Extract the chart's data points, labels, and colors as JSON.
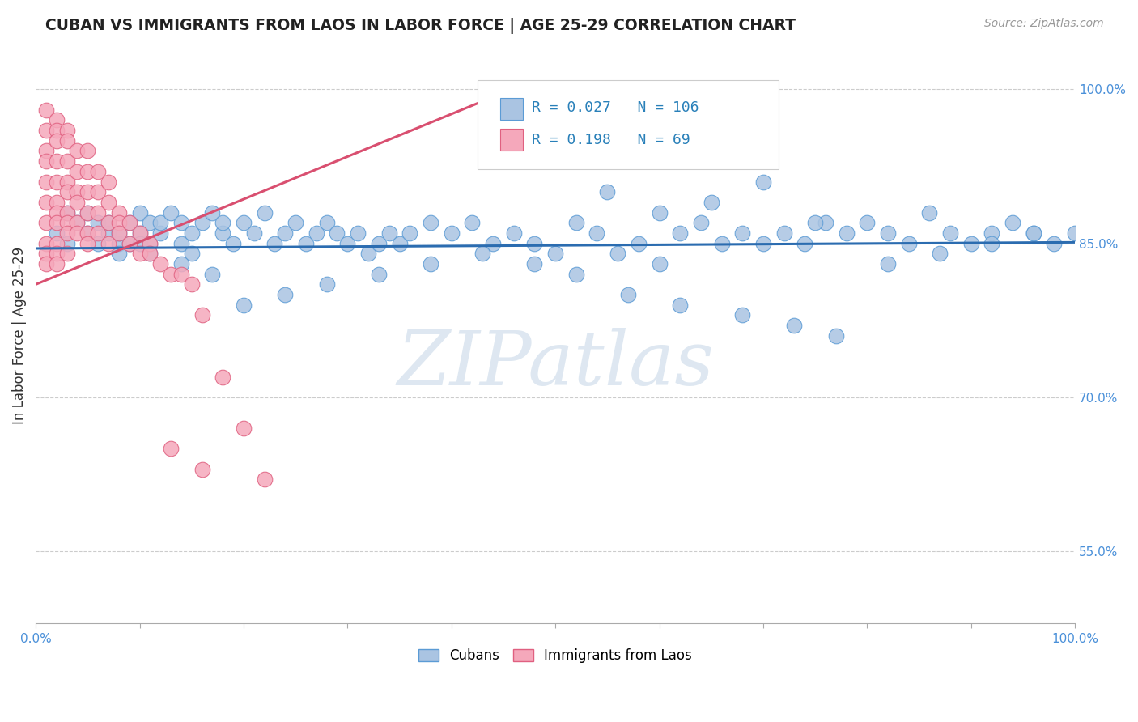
{
  "title": "CUBAN VS IMMIGRANTS FROM LAOS IN LABOR FORCE | AGE 25-29 CORRELATION CHART",
  "source_text": "Source: ZipAtlas.com",
  "ylabel": "In Labor Force | Age 25-29",
  "xlim": [
    0.0,
    1.0
  ],
  "ylim": [
    0.48,
    1.04
  ],
  "yticklabels_right": [
    "55.0%",
    "70.0%",
    "85.0%",
    "100.0%"
  ],
  "yticks_right": [
    0.55,
    0.7,
    0.85,
    1.0
  ],
  "legend_blue_R": "0.027",
  "legend_blue_N": "106",
  "legend_pink_R": "0.198",
  "legend_pink_N": "69",
  "blue_color": "#aac4e2",
  "pink_color": "#f5a8bb",
  "blue_edge_color": "#5b9bd5",
  "pink_edge_color": "#e06080",
  "blue_line_color": "#2b6cb0",
  "pink_line_color": "#d94f70",
  "legend_text_color": "#2980b9",
  "watermark_color": "#c8d8e8",
  "background_color": "#ffffff",
  "grid_color": "#cccccc",
  "title_color": "#222222",
  "axis_label_color": "#333333",
  "tick_color": "#4a90d9",
  "source_color": "#999999",
  "blue_x": [
    0.02,
    0.03,
    0.03,
    0.04,
    0.05,
    0.05,
    0.06,
    0.06,
    0.07,
    0.07,
    0.08,
    0.08,
    0.08,
    0.09,
    0.09,
    0.1,
    0.1,
    0.1,
    0.11,
    0.11,
    0.12,
    0.12,
    0.13,
    0.14,
    0.14,
    0.15,
    0.15,
    0.16,
    0.17,
    0.18,
    0.18,
    0.19,
    0.2,
    0.21,
    0.22,
    0.23,
    0.24,
    0.25,
    0.26,
    0.27,
    0.28,
    0.29,
    0.3,
    0.31,
    0.32,
    0.33,
    0.34,
    0.35,
    0.36,
    0.38,
    0.4,
    0.42,
    0.44,
    0.46,
    0.48,
    0.5,
    0.52,
    0.54,
    0.56,
    0.58,
    0.6,
    0.62,
    0.64,
    0.66,
    0.68,
    0.7,
    0.72,
    0.74,
    0.76,
    0.78,
    0.8,
    0.82,
    0.84,
    0.86,
    0.88,
    0.9,
    0.92,
    0.94,
    0.96,
    0.98,
    1.0,
    0.55,
    0.6,
    0.65,
    0.7,
    0.75,
    0.48,
    0.52,
    0.57,
    0.62,
    0.68,
    0.73,
    0.77,
    0.82,
    0.87,
    0.92,
    0.96,
    0.43,
    0.38,
    0.33,
    0.28,
    0.24,
    0.2,
    0.17,
    0.14,
    0.11
  ],
  "blue_y": [
    0.86,
    0.88,
    0.85,
    0.87,
    0.86,
    0.88,
    0.85,
    0.87,
    0.86,
    0.87,
    0.85,
    0.86,
    0.84,
    0.85,
    0.87,
    0.86,
    0.85,
    0.88,
    0.85,
    0.87,
    0.86,
    0.87,
    0.88,
    0.85,
    0.87,
    0.86,
    0.84,
    0.87,
    0.88,
    0.86,
    0.87,
    0.85,
    0.87,
    0.86,
    0.88,
    0.85,
    0.86,
    0.87,
    0.85,
    0.86,
    0.87,
    0.86,
    0.85,
    0.86,
    0.84,
    0.85,
    0.86,
    0.85,
    0.86,
    0.87,
    0.86,
    0.87,
    0.85,
    0.86,
    0.85,
    0.84,
    0.87,
    0.86,
    0.84,
    0.85,
    0.83,
    0.86,
    0.87,
    0.85,
    0.86,
    0.85,
    0.86,
    0.85,
    0.87,
    0.86,
    0.87,
    0.86,
    0.85,
    0.88,
    0.86,
    0.85,
    0.86,
    0.87,
    0.86,
    0.85,
    0.86,
    0.9,
    0.88,
    0.89,
    0.91,
    0.87,
    0.83,
    0.82,
    0.8,
    0.79,
    0.78,
    0.77,
    0.76,
    0.83,
    0.84,
    0.85,
    0.86,
    0.84,
    0.83,
    0.82,
    0.81,
    0.8,
    0.79,
    0.82,
    0.83,
    0.84
  ],
  "pink_x": [
    0.01,
    0.01,
    0.01,
    0.01,
    0.01,
    0.01,
    0.01,
    0.01,
    0.01,
    0.01,
    0.02,
    0.02,
    0.02,
    0.02,
    0.02,
    0.02,
    0.02,
    0.02,
    0.02,
    0.02,
    0.02,
    0.03,
    0.03,
    0.03,
    0.03,
    0.03,
    0.03,
    0.03,
    0.03,
    0.03,
    0.04,
    0.04,
    0.04,
    0.04,
    0.04,
    0.04,
    0.05,
    0.05,
    0.05,
    0.05,
    0.05,
    0.05,
    0.06,
    0.06,
    0.06,
    0.06,
    0.07,
    0.07,
    0.07,
    0.07,
    0.08,
    0.08,
    0.08,
    0.09,
    0.09,
    0.1,
    0.1,
    0.11,
    0.11,
    0.12,
    0.13,
    0.14,
    0.15,
    0.16,
    0.18,
    0.2,
    0.22,
    0.13,
    0.16
  ],
  "pink_y": [
    0.98,
    0.96,
    0.94,
    0.93,
    0.91,
    0.89,
    0.87,
    0.85,
    0.84,
    0.83,
    0.97,
    0.96,
    0.95,
    0.93,
    0.91,
    0.89,
    0.88,
    0.87,
    0.85,
    0.84,
    0.83,
    0.96,
    0.95,
    0.93,
    0.91,
    0.9,
    0.88,
    0.87,
    0.86,
    0.84,
    0.94,
    0.92,
    0.9,
    0.89,
    0.87,
    0.86,
    0.94,
    0.92,
    0.9,
    0.88,
    0.86,
    0.85,
    0.92,
    0.9,
    0.88,
    0.86,
    0.91,
    0.89,
    0.87,
    0.85,
    0.88,
    0.87,
    0.86,
    0.87,
    0.85,
    0.86,
    0.84,
    0.85,
    0.84,
    0.83,
    0.82,
    0.82,
    0.81,
    0.78,
    0.72,
    0.67,
    0.62,
    0.65,
    0.63
  ],
  "pink_trend_x": [
    0.0,
    0.47
  ],
  "pink_trend_y": [
    0.81,
    1.005
  ],
  "blue_trend_x": [
    0.0,
    1.0
  ],
  "blue_trend_y": [
    0.845,
    0.851
  ]
}
